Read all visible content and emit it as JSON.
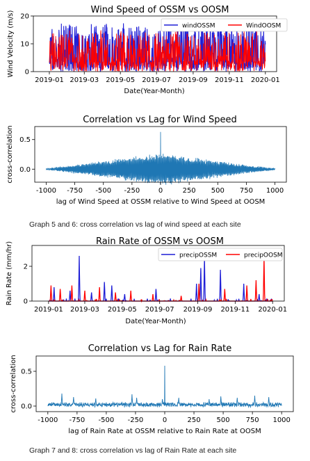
{
  "captions": {
    "first": "Graph 5 and 6: cross correlation vs lag of wind speed at each site",
    "second": "Graph 7 and 8: cross correlation vs lag of Rain Rate at each site"
  },
  "colors": {
    "series_a": "#1f1fd6",
    "series_b": "#ff0000",
    "corr_line": "#1f77b4"
  },
  "chart_data": [
    {
      "type": "line",
      "title": "Wind Speed of OSSM vs OOSM",
      "xlabel": "Date(Year-Month)",
      "ylabel": "Wind Velocity (m/s)",
      "x_range": [
        "2019-01-01",
        "2020-01-01"
      ],
      "xlim": [
        "2018-12-05",
        "2020-01-20"
      ],
      "ylim": [
        0,
        20
      ],
      "xticks": [
        "2019-01",
        "2019-03",
        "2019-05",
        "2019-07",
        "2019-09",
        "2019-11",
        "2020-01"
      ],
      "yticks": [
        0,
        10,
        20
      ],
      "legend_position": "top-right",
      "series": [
        {
          "name": "windOSSM",
          "color": "#1f1fd6",
          "typical_max": 17.5
        },
        {
          "name": "WindOOSM",
          "color": "#ff0000",
          "typical_max": 15
        }
      ]
    },
    {
      "type": "line",
      "title": "Correlation vs Lag for Wind Speed",
      "xlabel": "lag of Wind Speed at OSSM relative to Wind Speed at OOSM",
      "ylabel": "cross-correlation",
      "xlim": [
        -1100,
        1100
      ],
      "ylim": [
        -0.22,
        0.72
      ],
      "xticks": [
        -1000,
        -750,
        -500,
        -250,
        0,
        250,
        500,
        750,
        1000
      ],
      "yticks": [
        0.0,
        0.5
      ],
      "x_range": [
        -1000,
        1000
      ],
      "peak": {
        "x": 0,
        "y": 0.63
      },
      "envelope_at_zero": 0.28
    },
    {
      "type": "line",
      "title": "Rain Rate of OSSM vs OOSM",
      "xlabel": "Date(Year-Month)",
      "ylabel": "Rain Rate (mm/hr)",
      "x_range": [
        "2019-01-01",
        "2020-01-01"
      ],
      "xlim": [
        "2018-12-05",
        "2020-01-20"
      ],
      "ylim": [
        0,
        3.2
      ],
      "xticks": [
        "2019-01",
        "2019-03",
        "2019-05",
        "2019-07",
        "2019-09",
        "2019-11",
        "2020-01"
      ],
      "yticks": [
        0,
        2
      ],
      "legend_position": "top-right",
      "series": [
        {
          "name": "precipOSSM",
          "color": "#1f1fd6",
          "spikes": [
            [
              "2019-01-10",
              0.8
            ],
            [
              "2019-02-05",
              0.6
            ],
            [
              "2019-02-20",
              2.6
            ],
            [
              "2019-03-12",
              0.5
            ],
            [
              "2019-04-02",
              1.1
            ],
            [
              "2019-04-14",
              0.9
            ],
            [
              "2019-05-05",
              0.4
            ],
            [
              "2019-06-25",
              0.7
            ],
            [
              "2019-08-30",
              1.0
            ],
            [
              "2019-09-06",
              1.9
            ],
            [
              "2019-09-12",
              2.5
            ],
            [
              "2019-10-08",
              1.8
            ],
            [
              "2019-11-15",
              1.0
            ],
            [
              "2019-12-10",
              0.4
            ]
          ]
        },
        {
          "name": "precipOOSM",
          "color": "#ff0000",
          "spikes": [
            [
              "2019-01-05",
              0.9
            ],
            [
              "2019-01-20",
              0.7
            ],
            [
              "2019-02-08",
              0.9
            ],
            [
              "2019-03-01",
              0.6
            ],
            [
              "2019-03-25",
              0.8
            ],
            [
              "2019-04-20",
              0.5
            ],
            [
              "2019-05-15",
              0.6
            ],
            [
              "2019-06-20",
              0.4
            ],
            [
              "2019-08-05",
              0.3
            ],
            [
              "2019-09-03",
              1.0
            ],
            [
              "2019-10-15",
              0.7
            ],
            [
              "2019-11-20",
              0.9
            ],
            [
              "2019-12-05",
              1.2
            ],
            [
              "2019-12-18",
              2.5
            ]
          ]
        }
      ]
    },
    {
      "type": "line",
      "title": "Correlation vs Lag for Rain Rate",
      "xlabel": "lag of Rain Rate at OSSM relative to Rain Rate at OOSM",
      "ylabel": "cross-correlation",
      "xlim": [
        -1100,
        1100
      ],
      "ylim": [
        -0.08,
        0.72
      ],
      "xticks": [
        -1000,
        -750,
        -500,
        -250,
        0,
        250,
        500,
        750,
        1000
      ],
      "yticks": [
        0.0,
        0.5
      ],
      "x_range": [
        -1000,
        1000
      ],
      "peak": {
        "x": 0,
        "y": 0.58
      },
      "secondary_peaks": [
        [
          -880,
          0.18
        ],
        [
          -780,
          0.13
        ],
        [
          -590,
          0.11
        ],
        [
          -280,
          0.17
        ],
        [
          -240,
          0.12
        ],
        [
          -20,
          0.1
        ],
        [
          120,
          0.12
        ],
        [
          380,
          0.1
        ],
        [
          480,
          0.14
        ],
        [
          620,
          0.12
        ],
        [
          770,
          0.15
        ],
        [
          890,
          0.13
        ]
      ]
    }
  ]
}
